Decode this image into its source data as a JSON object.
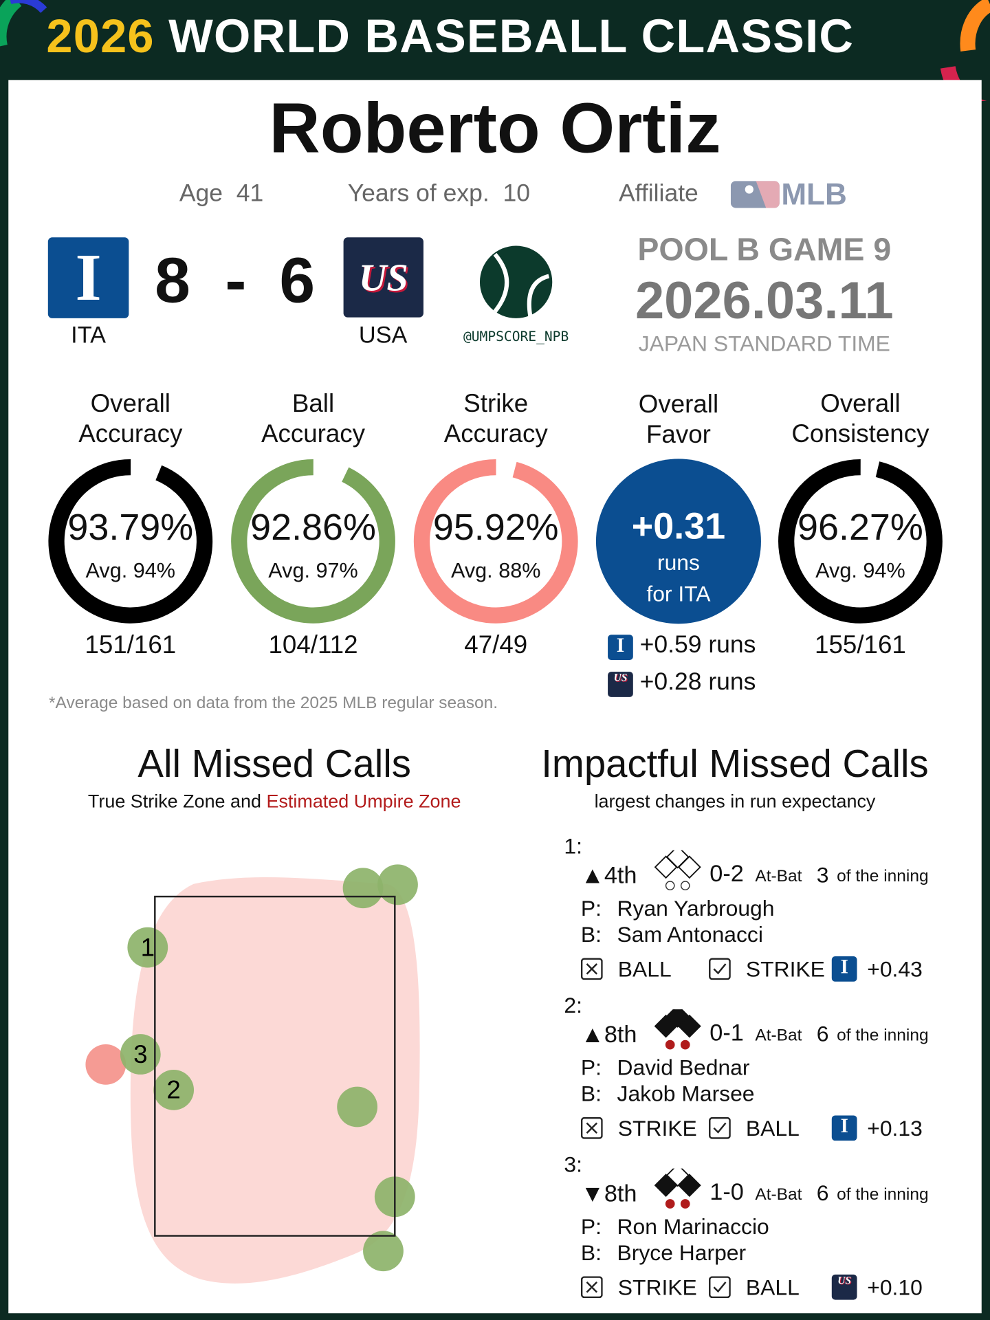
{
  "header": {
    "year": "2026",
    "title": "WORLD BASEBALL CLASSIC"
  },
  "umpire": {
    "name": "Roberto Ortiz",
    "age_label": "Age",
    "age": 41,
    "exp_label": "Years of exp.",
    "exp": 10,
    "affiliate_label": "Affiliate",
    "affiliate": "MLB"
  },
  "game": {
    "away": {
      "logo": "I",
      "score": 8,
      "abbr": "ITA"
    },
    "dash": "-",
    "home": {
      "logo": "US",
      "score": 6,
      "abbr": "USA"
    },
    "handle": "@UMPSCORE_NPB",
    "pool": "POOL B GAME 9",
    "date": "2026.03.11",
    "timezone": "JAPAN STANDARD TIME"
  },
  "metrics": [
    {
      "title": [
        "Overall",
        "Accuracy"
      ],
      "value": 93.79,
      "value_label": "93.79%",
      "avg": "Avg. 94%",
      "count": "151/161",
      "color": "#000000"
    },
    {
      "title": [
        "Ball",
        "Accuracy"
      ],
      "value": 92.86,
      "value_label": "92.86%",
      "avg": "Avg. 97%",
      "count": "104/112",
      "color": "#7aa55a"
    },
    {
      "title": [
        "Strike",
        "Accuracy"
      ],
      "value": 95.92,
      "value_label": "95.92%",
      "avg": "Avg. 88%",
      "count": "47/49",
      "color": "#f98a83"
    },
    {
      "title": [
        "Overall",
        "Consistency"
      ],
      "value": 96.27,
      "value_label": "96.27%",
      "avg": "Avg. 94%",
      "count": "155/161",
      "color": "#000000"
    }
  ],
  "favor": {
    "title": [
      "Overall",
      "Favor"
    ],
    "value": "+0.31",
    "unit": "runs",
    "for": "for ITA",
    "teams": [
      {
        "logo": "I",
        "runs": "+0.59 runs"
      },
      {
        "logo": "US",
        "runs": "+0.28 runs"
      }
    ]
  },
  "footnote": "*Average based on data from the 2025 MLB regular season.",
  "all_missed": {
    "title": "All Missed Calls",
    "subtitle": "True Strike Zone and ",
    "subtitle_highlight": "Estimated Umpire Zone",
    "zone": {
      "left": -0.83,
      "right": 0.83,
      "bottom": 1.5,
      "top": 3.5
    },
    "pitches": [
      {
        "x": 0.61,
        "z": 3.55,
        "color": "#8db36a",
        "label": null
      },
      {
        "x": 0.85,
        "z": 3.57,
        "color": "#8db36a",
        "label": null
      },
      {
        "x": -0.88,
        "z": 3.2,
        "color": "#8db36a",
        "label": "1"
      },
      {
        "x": -1.17,
        "z": 2.51,
        "color": "#f4928b",
        "label": null
      },
      {
        "x": -0.93,
        "z": 2.57,
        "color": "#8db36a",
        "label": "3"
      },
      {
        "x": -0.7,
        "z": 2.36,
        "color": "#8db36a",
        "label": "2"
      },
      {
        "x": 0.57,
        "z": 2.26,
        "color": "#8db36a",
        "label": null
      },
      {
        "x": 0.83,
        "z": 1.73,
        "color": "#8db36a",
        "label": null
      },
      {
        "x": 0.75,
        "z": 1.41,
        "color": "#8db36a",
        "label": null
      }
    ]
  },
  "impactful": {
    "title": "Impactful Missed Calls",
    "subtitle": "largest changes in run expectancy",
    "calls": [
      {
        "number": "1:",
        "half": "▲",
        "inning": "4th",
        "bases": [
          false,
          false,
          false
        ],
        "outs": 0,
        "count": "0-2",
        "atbat_label": "At-Bat",
        "atbat": 3,
        "atbat_suffix": "of the inning",
        "pitcher_label": "P:",
        "pitcher": "Ryan Yarbrough",
        "batter_label": "B:",
        "batter": "Sam Antonacci",
        "called": "BALL",
        "correct": "STRIKE",
        "team_logo": "I",
        "impact": "+0.43"
      },
      {
        "number": "2:",
        "half": "▲",
        "inning": "8th",
        "bases": [
          true,
          true,
          true
        ],
        "outs": 2,
        "count": "0-1",
        "atbat_label": "At-Bat",
        "atbat": 6,
        "atbat_suffix": "of the inning",
        "pitcher_label": "P:",
        "pitcher": "David Bednar",
        "batter_label": "B:",
        "batter": "Jakob Marsee",
        "called": "STRIKE",
        "correct": "BALL",
        "team_logo": "I",
        "impact": "+0.13"
      },
      {
        "number": "3:",
        "half": "▼",
        "inning": "8th",
        "bases": [
          true,
          false,
          true
        ],
        "outs": 2,
        "count": "1-0",
        "atbat_label": "At-Bat",
        "atbat": 6,
        "atbat_suffix": "of the inning",
        "pitcher_label": "P:",
        "pitcher": "Ron Marinaccio",
        "batter_label": "B:",
        "batter": "Bryce Harper",
        "called": "STRIKE",
        "correct": "BALL",
        "team_logo": "US",
        "impact": "+0.10"
      }
    ]
  }
}
